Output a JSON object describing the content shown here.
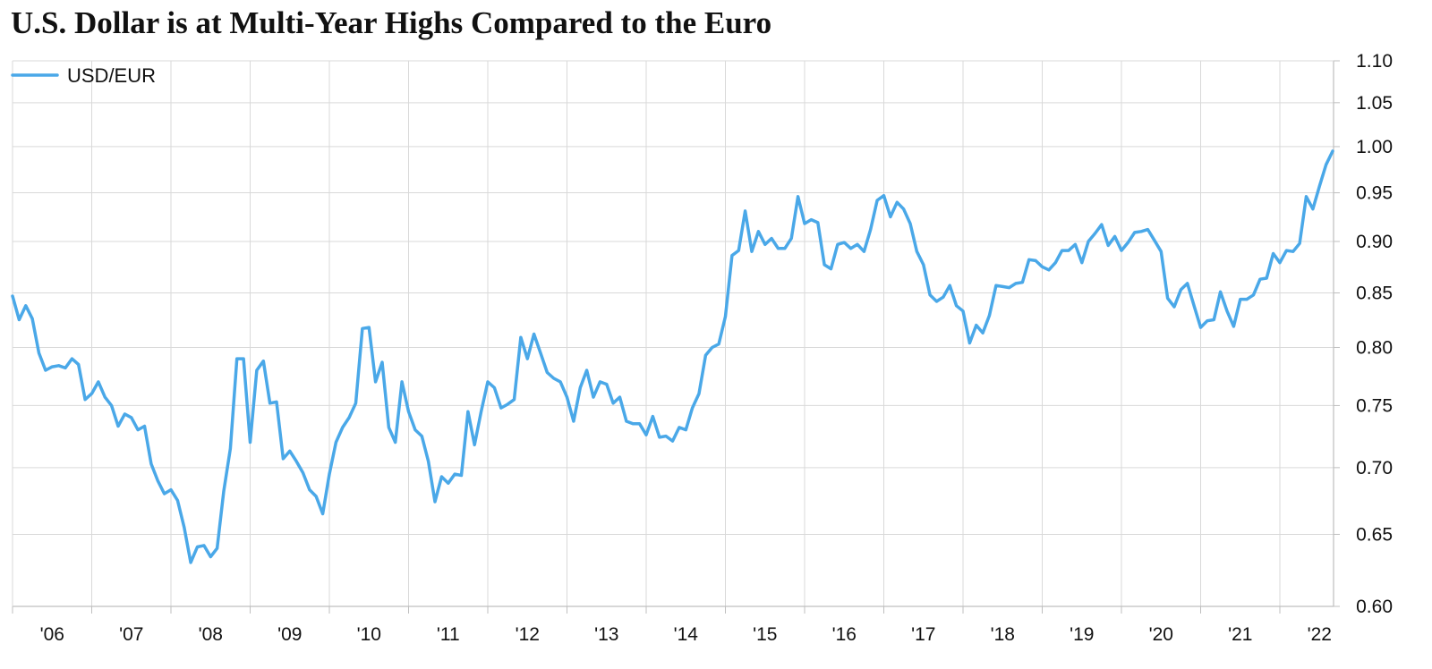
{
  "chart_data": {
    "type": "line",
    "title": "U.S. Dollar is at Multi-Year Highs Compared to the Euro",
    "xlabel": "",
    "ylabel": "",
    "y_axis_position": "right",
    "y_scale": "log",
    "ylim": [
      0.6,
      1.1
    ],
    "y_ticks": [
      "1.10",
      "1.05",
      "1.00",
      "0.95",
      "0.90",
      "0.85",
      "0.80",
      "0.75",
      "0.70",
      "0.65",
      "0.60"
    ],
    "x_ticks": [
      "'06",
      "'07",
      "'08",
      "'09",
      "'10",
      "'11",
      "'12",
      "'13",
      "'14",
      "'15",
      "'16",
      "'17",
      "'18",
      "'19",
      "'20",
      "'21",
      "'22"
    ],
    "grid": true,
    "legend": {
      "placement": "top-left",
      "entries": [
        "USD/EUR"
      ]
    },
    "colors": {
      "line": "#4aa8e8",
      "grid": "#d9d9d9",
      "axis": "#bfbfbf"
    },
    "series": [
      {
        "name": "USD/EUR",
        "points": [
          [
            "2006-01",
            0.847
          ],
          [
            "2006-02",
            0.825
          ],
          [
            "2006-03",
            0.838
          ],
          [
            "2006-04",
            0.826
          ],
          [
            "2006-05",
            0.795
          ],
          [
            "2006-06",
            0.78
          ],
          [
            "2006-07",
            0.783
          ],
          [
            "2006-08",
            0.784
          ],
          [
            "2006-09",
            0.782
          ],
          [
            "2006-10",
            0.79
          ],
          [
            "2006-11",
            0.785
          ],
          [
            "2006-12",
            0.755
          ],
          [
            "2007-01",
            0.76
          ],
          [
            "2007-02",
            0.77
          ],
          [
            "2007-03",
            0.757
          ],
          [
            "2007-04",
            0.75
          ],
          [
            "2007-05",
            0.733
          ],
          [
            "2007-06",
            0.743
          ],
          [
            "2007-07",
            0.74
          ],
          [
            "2007-08",
            0.73
          ],
          [
            "2007-09",
            0.733
          ],
          [
            "2007-10",
            0.703
          ],
          [
            "2007-11",
            0.69
          ],
          [
            "2007-12",
            0.68
          ],
          [
            "2008-01",
            0.683
          ],
          [
            "2008-02",
            0.675
          ],
          [
            "2008-03",
            0.655
          ],
          [
            "2008-04",
            0.63
          ],
          [
            "2008-05",
            0.641
          ],
          [
            "2008-06",
            0.642
          ],
          [
            "2008-07",
            0.634
          ],
          [
            "2008-08",
            0.64
          ],
          [
            "2008-09",
            0.682
          ],
          [
            "2008-10",
            0.715
          ],
          [
            "2008-11",
            0.79
          ],
          [
            "2008-12",
            0.79
          ],
          [
            "2009-01",
            0.72
          ],
          [
            "2009-02",
            0.78
          ],
          [
            "2009-03",
            0.788
          ],
          [
            "2009-04",
            0.752
          ],
          [
            "2009-05",
            0.753
          ],
          [
            "2009-06",
            0.707
          ],
          [
            "2009-07",
            0.713
          ],
          [
            "2009-08",
            0.705
          ],
          [
            "2009-09",
            0.696
          ],
          [
            "2009-10",
            0.683
          ],
          [
            "2009-11",
            0.678
          ],
          [
            "2009-12",
            0.665
          ],
          [
            "2010-01",
            0.695
          ],
          [
            "2010-02",
            0.72
          ],
          [
            "2010-03",
            0.732
          ],
          [
            "2010-04",
            0.74
          ],
          [
            "2010-05",
            0.752
          ],
          [
            "2010-06",
            0.817
          ],
          [
            "2010-07",
            0.818
          ],
          [
            "2010-08",
            0.77
          ],
          [
            "2010-09",
            0.787
          ],
          [
            "2010-10",
            0.732
          ],
          [
            "2010-11",
            0.72
          ],
          [
            "2010-12",
            0.77
          ],
          [
            "2011-01",
            0.745
          ],
          [
            "2011-02",
            0.73
          ],
          [
            "2011-03",
            0.725
          ],
          [
            "2011-04",
            0.705
          ],
          [
            "2011-05",
            0.674
          ],
          [
            "2011-06",
            0.693
          ],
          [
            "2011-07",
            0.688
          ],
          [
            "2011-08",
            0.695
          ],
          [
            "2011-09",
            0.694
          ],
          [
            "2011-10",
            0.745
          ],
          [
            "2011-11",
            0.718
          ],
          [
            "2011-12",
            0.745
          ],
          [
            "2012-01",
            0.77
          ],
          [
            "2012-02",
            0.765
          ],
          [
            "2012-03",
            0.748
          ],
          [
            "2012-04",
            0.751
          ],
          [
            "2012-05",
            0.755
          ],
          [
            "2012-06",
            0.809
          ],
          [
            "2012-07",
            0.79
          ],
          [
            "2012-08",
            0.812
          ],
          [
            "2012-09",
            0.795
          ],
          [
            "2012-10",
            0.778
          ],
          [
            "2012-11",
            0.773
          ],
          [
            "2012-12",
            0.77
          ],
          [
            "2013-01",
            0.757
          ],
          [
            "2013-02",
            0.737
          ],
          [
            "2013-03",
            0.765
          ],
          [
            "2013-04",
            0.78
          ],
          [
            "2013-05",
            0.757
          ],
          [
            "2013-06",
            0.77
          ],
          [
            "2013-07",
            0.768
          ],
          [
            "2013-08",
            0.752
          ],
          [
            "2013-09",
            0.757
          ],
          [
            "2013-10",
            0.737
          ],
          [
            "2013-11",
            0.735
          ],
          [
            "2013-12",
            0.735
          ],
          [
            "2014-01",
            0.726
          ],
          [
            "2014-02",
            0.741
          ],
          [
            "2014-03",
            0.724
          ],
          [
            "2014-04",
            0.725
          ],
          [
            "2014-05",
            0.721
          ],
          [
            "2014-06",
            0.732
          ],
          [
            "2014-07",
            0.73
          ],
          [
            "2014-08",
            0.748
          ],
          [
            "2014-09",
            0.76
          ],
          [
            "2014-10",
            0.793
          ],
          [
            "2014-11",
            0.8
          ],
          [
            "2014-12",
            0.803
          ],
          [
            "2015-01",
            0.828
          ],
          [
            "2015-02",
            0.886
          ],
          [
            "2015-03",
            0.891
          ],
          [
            "2015-04",
            0.931
          ],
          [
            "2015-05",
            0.89
          ],
          [
            "2015-06",
            0.91
          ],
          [
            "2015-07",
            0.897
          ],
          [
            "2015-08",
            0.903
          ],
          [
            "2015-09",
            0.893
          ],
          [
            "2015-10",
            0.893
          ],
          [
            "2015-11",
            0.903
          ],
          [
            "2015-12",
            0.946
          ],
          [
            "2016-01",
            0.918
          ],
          [
            "2016-02",
            0.922
          ],
          [
            "2016-03",
            0.919
          ],
          [
            "2016-04",
            0.877
          ],
          [
            "2016-05",
            0.873
          ],
          [
            "2016-06",
            0.897
          ],
          [
            "2016-07",
            0.899
          ],
          [
            "2016-08",
            0.893
          ],
          [
            "2016-09",
            0.897
          ],
          [
            "2016-10",
            0.89
          ],
          [
            "2016-11",
            0.912
          ],
          [
            "2016-12",
            0.942
          ],
          [
            "2017-01",
            0.947
          ],
          [
            "2017-02",
            0.925
          ],
          [
            "2017-03",
            0.94
          ],
          [
            "2017-04",
            0.933
          ],
          [
            "2017-05",
            0.918
          ],
          [
            "2017-06",
            0.89
          ],
          [
            "2017-07",
            0.877
          ],
          [
            "2017-08",
            0.848
          ],
          [
            "2017-09",
            0.842
          ],
          [
            "2017-10",
            0.846
          ],
          [
            "2017-11",
            0.857
          ],
          [
            "2017-12",
            0.838
          ],
          [
            "2018-01",
            0.833
          ],
          [
            "2018-02",
            0.804
          ],
          [
            "2018-03",
            0.82
          ],
          [
            "2018-04",
            0.813
          ],
          [
            "2018-05",
            0.829
          ],
          [
            "2018-06",
            0.857
          ],
          [
            "2018-07",
            0.856
          ],
          [
            "2018-08",
            0.855
          ],
          [
            "2018-09",
            0.859
          ],
          [
            "2018-10",
            0.86
          ],
          [
            "2018-11",
            0.882
          ],
          [
            "2018-12",
            0.881
          ],
          [
            "2019-01",
            0.875
          ],
          [
            "2019-02",
            0.872
          ],
          [
            "2019-03",
            0.879
          ],
          [
            "2019-04",
            0.891
          ],
          [
            "2019-05",
            0.891
          ],
          [
            "2019-06",
            0.897
          ],
          [
            "2019-07",
            0.879
          ],
          [
            "2019-08",
            0.9
          ],
          [
            "2019-09",
            0.908
          ],
          [
            "2019-10",
            0.917
          ],
          [
            "2019-11",
            0.896
          ],
          [
            "2019-12",
            0.905
          ],
          [
            "2020-01",
            0.891
          ],
          [
            "2020-02",
            0.899
          ],
          [
            "2020-03",
            0.909
          ],
          [
            "2020-04",
            0.91
          ],
          [
            "2020-05",
            0.912
          ],
          [
            "2020-06",
            0.901
          ],
          [
            "2020-07",
            0.89
          ],
          [
            "2020-08",
            0.845
          ],
          [
            "2020-09",
            0.837
          ],
          [
            "2020-10",
            0.853
          ],
          [
            "2020-11",
            0.859
          ],
          [
            "2020-12",
            0.838
          ],
          [
            "2021-01",
            0.818
          ],
          [
            "2021-02",
            0.824
          ],
          [
            "2021-03",
            0.825
          ],
          [
            "2021-04",
            0.851
          ],
          [
            "2021-05",
            0.833
          ],
          [
            "2021-06",
            0.819
          ],
          [
            "2021-07",
            0.844
          ],
          [
            "2021-08",
            0.844
          ],
          [
            "2021-09",
            0.848
          ],
          [
            "2021-10",
            0.863
          ],
          [
            "2021-11",
            0.864
          ],
          [
            "2021-12",
            0.888
          ],
          [
            "2022-01",
            0.879
          ],
          [
            "2022-02",
            0.891
          ],
          [
            "2022-03",
            0.89
          ],
          [
            "2022-04",
            0.898
          ],
          [
            "2022-05",
            0.946
          ],
          [
            "2022-06",
            0.933
          ],
          [
            "2022-07",
            0.957
          ],
          [
            "2022-08",
            0.98
          ],
          [
            "2022-09",
            0.995
          ]
        ]
      }
    ]
  }
}
